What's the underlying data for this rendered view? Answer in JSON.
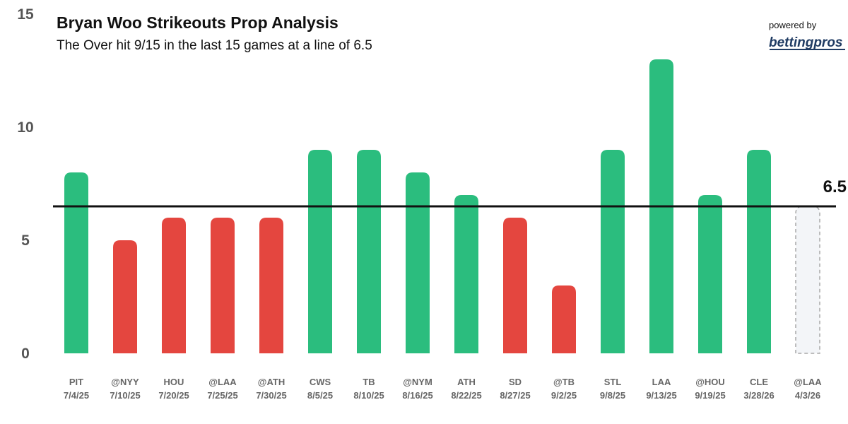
{
  "chart_data": {
    "type": "bar",
    "title": "Bryan Woo Strikeouts Prop Analysis",
    "subtitle": "The Over hit 9/15 in the last 15 games at a line of 6.5",
    "xlabel": "",
    "ylabel": "",
    "ylim": [
      0,
      15
    ],
    "yticks": [
      "0",
      "5",
      "10",
      "15"
    ],
    "grid": false,
    "line": {
      "value": 6.5,
      "label": "6.5"
    },
    "categories": [
      {
        "opponent": "PIT",
        "date": "7/4/25"
      },
      {
        "opponent": "@NYY",
        "date": "7/10/25"
      },
      {
        "opponent": "HOU",
        "date": "7/20/25"
      },
      {
        "opponent": "@LAA",
        "date": "7/25/25"
      },
      {
        "opponent": "@ATH",
        "date": "7/30/25"
      },
      {
        "opponent": "CWS",
        "date": "8/5/25"
      },
      {
        "opponent": "TB",
        "date": "8/10/25"
      },
      {
        "opponent": "@NYM",
        "date": "8/16/25"
      },
      {
        "opponent": "ATH",
        "date": "8/22/25"
      },
      {
        "opponent": "SD",
        "date": "8/27/25"
      },
      {
        "opponent": "@TB",
        "date": "9/2/25"
      },
      {
        "opponent": "STL",
        "date": "9/8/25"
      },
      {
        "opponent": "LAA",
        "date": "9/13/25"
      },
      {
        "opponent": "@HOU",
        "date": "9/19/25"
      },
      {
        "opponent": "CLE",
        "date": "3/28/26"
      },
      {
        "opponent": "@LAA",
        "date": "4/3/26"
      }
    ],
    "values": [
      8,
      5,
      6,
      6,
      6,
      9,
      9,
      8,
      7,
      6,
      3,
      9,
      13,
      7,
      9,
      null
    ],
    "colors": {
      "over": "#2bbd7e",
      "under": "#e4463f",
      "upcoming_fill": "#f3f5f8",
      "upcoming_stroke": "#a8a8a8",
      "line": "#111111"
    }
  },
  "branding": {
    "powered_by": "powered by",
    "brand_name": "bettingpros"
  }
}
